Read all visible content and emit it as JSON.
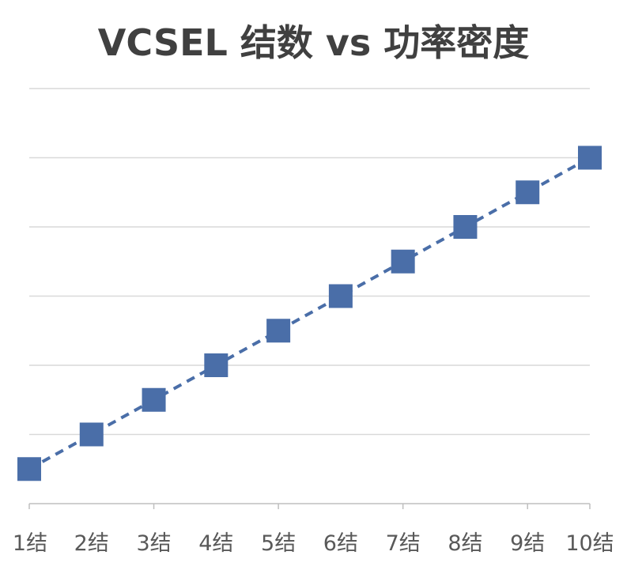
{
  "chart_data": {
    "type": "line",
    "title": "VCSEL 结数 vs 功率密度",
    "xlabel": "",
    "ylabel": "",
    "categories": [
      "1结",
      "2结",
      "3结",
      "4结",
      "5结",
      "6结",
      "7结",
      "8结",
      "9结",
      "10结"
    ],
    "series": [
      {
        "values": [
          1,
          2,
          3,
          4,
          5,
          6,
          7,
          8,
          9,
          10
        ],
        "color": "#4a6ea8",
        "marker": "square",
        "line_style": "dashed"
      }
    ],
    "ylim": [
      0,
      12
    ],
    "grid": true,
    "y_tick_labels_shown": false,
    "legend": "none",
    "gridline_color": "#d9d9d9",
    "axis_color": "#bfbfbf"
  }
}
